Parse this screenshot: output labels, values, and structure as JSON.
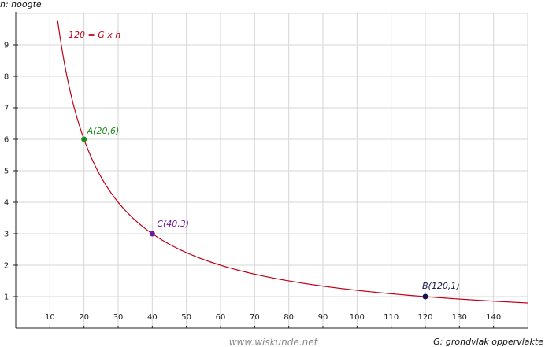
{
  "chart_data": {
    "type": "line",
    "ylabel": "h: hoogte",
    "xlabel": "G: grondvlak oppervlakte",
    "xlim": [
      0,
      150
    ],
    "ylim": [
      0,
      10
    ],
    "x_ticks": [
      10,
      20,
      30,
      40,
      50,
      60,
      70,
      80,
      90,
      100,
      110,
      120,
      130,
      140
    ],
    "y_ticks": [
      1,
      2,
      3,
      4,
      5,
      6,
      7,
      8,
      9
    ],
    "grid": true,
    "series": [
      {
        "name": "120 = G x h",
        "function": "h = 120 / G",
        "x_range": [
          12.3,
          150
        ],
        "color": "#c00018"
      }
    ],
    "points": [
      {
        "label": "A(20,6)",
        "x": 20,
        "y": 6,
        "color": "#1a8a1a"
      },
      {
        "label": "C(40,3)",
        "x": 40,
        "y": 3,
        "color": "#6a1a9a"
      },
      {
        "label": "B(120,1)",
        "x": 120,
        "y": 1,
        "color": "#141450"
      }
    ]
  },
  "watermark": "www.wiskunde.net"
}
